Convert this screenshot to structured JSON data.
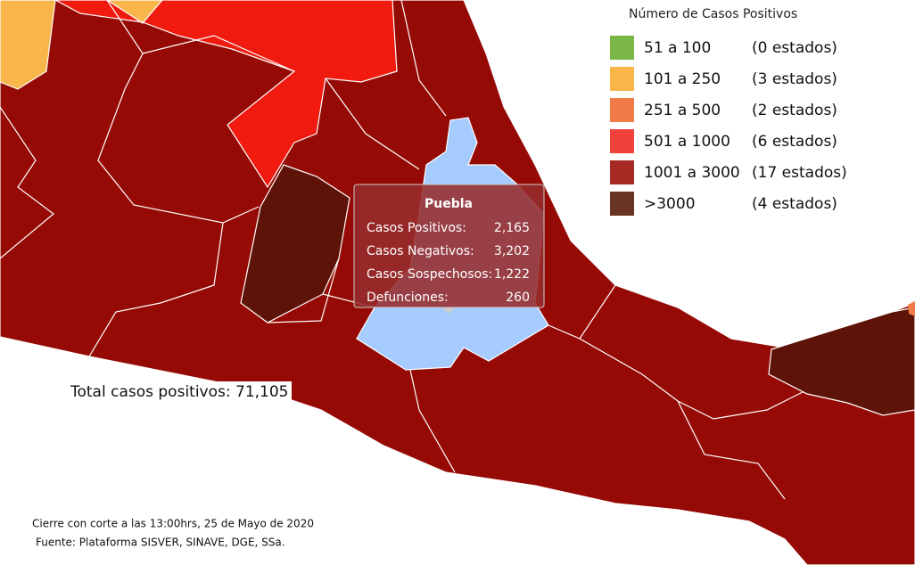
{
  "legend": {
    "title": "Número de Casos Positivos",
    "items": [
      {
        "range": "51 a 100",
        "count": "(0 estados)",
        "color": "#7ab648"
      },
      {
        "range": "101 a 250",
        "count": "(3 estados)",
        "color": "#f7b54a"
      },
      {
        "range": "251 a 500",
        "count": "(2 estados)",
        "color": "#f07a48"
      },
      {
        "range": "501 a 1000",
        "count": "(6 estados)",
        "color": "#f0423a"
      },
      {
        "range": "1001 a 3000",
        "count": "(17 estados)",
        "color": "#a52a24"
      },
      {
        "range": ">3000",
        "count": "(4 estados)",
        "color": "#6b3526"
      }
    ]
  },
  "tooltip": {
    "title": "Puebla",
    "rows": [
      {
        "label": "Casos Positivos:",
        "value": "2,165"
      },
      {
        "label": "Casos Negativos:",
        "value": "3,202"
      },
      {
        "label": "Casos Sospechosos:",
        "value": "1,222"
      },
      {
        "label": "Defunciones:",
        "value": "260"
      }
    ]
  },
  "total": "Total casos positivos: 71,105",
  "footer": [
    "Cierre con corte a las 13:00hrs, 25 de Mayo de 2020",
    "Fuente: Plataforma SISVER, SINAVE, DGE, SSa."
  ]
}
